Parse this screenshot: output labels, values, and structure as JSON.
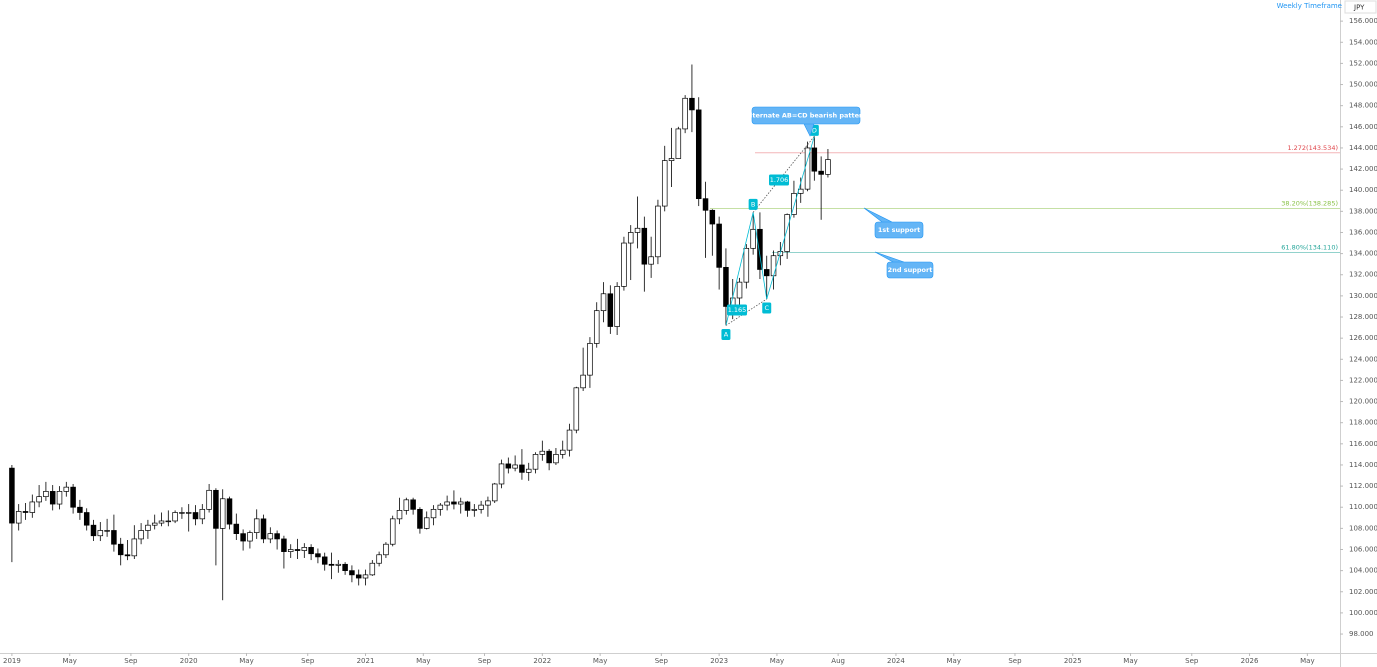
{
  "chart_data": {
    "type": "candlestick",
    "x": [
      0,
      2,
      4,
      6,
      8,
      10,
      12,
      14,
      16,
      18,
      20,
      22,
      24,
      26,
      28,
      30,
      32,
      34,
      36,
      38,
      40,
      42,
      44,
      46,
      48,
      50,
      52,
      54,
      56,
      58,
      60,
      62,
      64,
      66,
      68,
      70,
      72,
      74,
      76,
      78,
      80,
      82,
      84,
      86,
      88,
      90,
      92,
      94,
      96,
      98,
      100,
      102,
      104,
      106,
      108,
      110,
      112,
      114,
      116,
      118,
      120,
      122,
      124,
      126,
      128,
      130,
      132,
      134,
      136,
      138,
      140,
      142,
      144,
      146,
      148,
      150,
      152,
      154,
      156,
      158,
      160,
      162,
      164,
      166,
      168,
      170,
      172,
      174,
      176,
      178,
      180,
      182,
      184,
      186,
      188,
      190,
      192,
      194,
      196,
      198,
      200,
      202,
      204,
      206,
      208,
      210,
      212,
      214,
      216,
      218,
      220,
      222,
      224,
      226,
      228,
      230,
      232,
      234,
      236,
      238,
      240
    ],
    "open": [
      113.7,
      108.5,
      109.6,
      109.5,
      110.5,
      111.0,
      111.5,
      110.3,
      111.5,
      111.9,
      110.0,
      109.5,
      108.3,
      107.3,
      107.8,
      107.8,
      106.5,
      105.5,
      105.4,
      107.0,
      107.8,
      108.3,
      108.5,
      108.7,
      108.7,
      109.5,
      109.5,
      109.5,
      108.9,
      109.8,
      111.6,
      108.0,
      110.8,
      108.4,
      107.5,
      106.8,
      107.6,
      108.9,
      107.0,
      107.5,
      107.0,
      105.8,
      106.0,
      105.9,
      106.2,
      105.6,
      105.3,
      104.6,
      104.5,
      104.6,
      104.0,
      103.6,
      103.3,
      103.6,
      104.7,
      105.5,
      106.5,
      108.9,
      109.7,
      110.7,
      109.8,
      108.0,
      109.0,
      109.8,
      110.2,
      110.5,
      110.3,
      110.5,
      109.7,
      109.8,
      110.2,
      110.6,
      112.2,
      114.1,
      113.7,
      114.0,
      113.3,
      113.6,
      115.0,
      115.3,
      114.2,
      115.0,
      115.4,
      117.3,
      121.3,
      122.5,
      125.5,
      128.6,
      130.2,
      127.1,
      130.9,
      135.0,
      136.0,
      136.4,
      133.0,
      133.7,
      138.5,
      142.8,
      143.0,
      145.8,
      148.7,
      147.6,
      139.2,
      138.1,
      136.8,
      132.7,
      129.0,
      129.8,
      131.3,
      134.5,
      136.3,
      132.5,
      131.9,
      133.8,
      134.2,
      137.7,
      139.7,
      140.1,
      144.0,
      141.8,
      141.5
    ],
    "high": [
      114.0,
      110.3,
      110.4,
      111.2,
      112.1,
      112.4,
      112.1,
      112.0,
      112.4,
      112.2,
      110.7,
      109.9,
      108.8,
      108.6,
      108.9,
      109.3,
      107.1,
      106.9,
      108.3,
      108.5,
      108.8,
      109.3,
      109.5,
      109.7,
      109.7,
      110.0,
      110.3,
      110.2,
      110.3,
      112.2,
      111.8,
      111.7,
      111.0,
      109.4,
      107.9,
      107.8,
      109.8,
      109.3,
      108.1,
      107.8,
      107.3,
      106.5,
      107.0,
      106.6,
      106.5,
      106.1,
      105.7,
      105.7,
      105.0,
      104.8,
      104.5,
      104.1,
      104.1,
      105.0,
      105.8,
      106.7,
      109.2,
      110.9,
      110.9,
      110.9,
      110.0,
      109.6,
      110.2,
      110.4,
      111.1,
      111.6,
      110.9,
      110.6,
      110.3,
      110.6,
      111.0,
      112.3,
      114.5,
      114.7,
      114.9,
      115.5,
      114.2,
      115.2,
      116.3,
      115.5,
      115.6,
      116.3,
      117.9,
      121.4,
      125.1,
      126.1,
      129.4,
      131.3,
      131.0,
      131.3,
      135.6,
      136.7,
      139.4,
      137.5,
      135.6,
      139.1,
      144.2,
      145.9,
      146.0,
      149.0,
      151.9,
      148.8,
      140.8,
      138.2,
      137.5,
      134.5,
      131.6,
      131.7,
      134.9,
      137.9,
      137.9,
      133.8,
      134.3,
      135.1,
      137.8,
      140.9,
      141.2,
      144.6,
      145.1,
      143.2,
      143.9
    ],
    "low": [
      104.8,
      107.8,
      108.8,
      109.0,
      110.0,
      110.6,
      109.7,
      109.8,
      111.0,
      109.4,
      108.8,
      107.8,
      106.8,
      106.8,
      107.2,
      105.8,
      104.5,
      105.0,
      105.1,
      106.5,
      107.0,
      107.9,
      108.2,
      108.2,
      108.5,
      108.9,
      107.7,
      108.3,
      108.4,
      109.5,
      104.5,
      101.2,
      107.9,
      106.9,
      105.9,
      106.1,
      107.0,
      106.6,
      106.6,
      106.0,
      104.2,
      105.2,
      105.1,
      105.2,
      105.0,
      104.7,
      104.0,
      103.2,
      103.8,
      103.6,
      102.9,
      102.6,
      102.6,
      103.5,
      104.4,
      105.2,
      106.3,
      108.4,
      109.3,
      109.3,
      107.5,
      107.9,
      108.3,
      109.2,
      109.7,
      109.8,
      109.4,
      109.1,
      109.1,
      109.4,
      109.1,
      110.4,
      111.8,
      113.2,
      113.4,
      112.6,
      112.5,
      113.2,
      114.4,
      113.5,
      114.0,
      114.6,
      114.8,
      117.0,
      121.0,
      121.3,
      125.1,
      127.5,
      126.4,
      126.3,
      130.5,
      131.5,
      134.5,
      130.4,
      131.7,
      133.0,
      138.0,
      140.3,
      143.5,
      145.4,
      145.5,
      138.5,
      133.6,
      133.8,
      130.6,
      127.2,
      127.8,
      128.5,
      130.7,
      133.9,
      131.6,
      129.7,
      130.6,
      132.9,
      133.5,
      137.4,
      138.8,
      139.9,
      140.9,
      137.2,
      141.2
    ],
    "close": [
      108.5,
      109.6,
      109.5,
      110.5,
      111.0,
      111.5,
      110.3,
      111.5,
      111.9,
      110.0,
      109.5,
      108.3,
      107.3,
      107.8,
      107.8,
      106.5,
      105.5,
      105.4,
      107.0,
      107.8,
      108.3,
      108.5,
      108.7,
      108.7,
      109.5,
      109.5,
      109.5,
      108.9,
      109.8,
      111.6,
      108.0,
      110.8,
      108.4,
      107.5,
      106.8,
      107.6,
      108.9,
      107.0,
      107.5,
      107.0,
      105.8,
      106.0,
      105.9,
      106.2,
      105.6,
      105.3,
      104.6,
      104.5,
      104.6,
      104.0,
      103.6,
      103.3,
      103.6,
      104.7,
      105.5,
      106.5,
      108.9,
      109.7,
      110.7,
      109.8,
      108.0,
      109.0,
      109.8,
      110.2,
      110.5,
      110.3,
      110.5,
      109.7,
      109.8,
      110.2,
      110.6,
      112.2,
      114.1,
      113.7,
      114.0,
      113.3,
      113.6,
      115.0,
      115.3,
      114.2,
      115.0,
      115.4,
      117.3,
      121.3,
      122.5,
      125.5,
      128.6,
      130.2,
      127.1,
      130.9,
      135.0,
      136.0,
      136.4,
      133.0,
      133.7,
      138.5,
      142.8,
      143.0,
      145.8,
      148.7,
      147.6,
      139.2,
      138.1,
      136.8,
      132.7,
      129.0,
      129.8,
      131.3,
      134.5,
      136.3,
      132.5,
      131.9,
      133.8,
      134.2,
      137.7,
      139.7,
      140.1,
      144.0,
      141.8,
      141.5,
      142.9
    ],
    "colors": {
      "up": "#ffffff",
      "down": "#000000",
      "outline": "#000000"
    },
    "xlim": [
      -3.5,
      390.6
    ],
    "xticks": [
      {
        "value": 0,
        "label": "2019"
      },
      {
        "value": 17,
        "label": "May"
      },
      {
        "value": 35,
        "label": "Sep"
      },
      {
        "value": 52,
        "label": "2020"
      },
      {
        "value": 69,
        "label": "May"
      },
      {
        "value": 87,
        "label": "Sep"
      },
      {
        "value": 104,
        "label": "2021"
      },
      {
        "value": 121,
        "label": "May"
      },
      {
        "value": 139,
        "label": "Sep"
      },
      {
        "value": 156,
        "label": "2022"
      },
      {
        "value": 173,
        "label": "May"
      },
      {
        "value": 191,
        "label": "Sep"
      },
      {
        "value": 208,
        "label": "2023"
      },
      {
        "value": 225,
        "label": "May"
      },
      {
        "value": 243,
        "label": "Aug"
      },
      {
        "value": 260,
        "label": "2024"
      },
      {
        "value": 277,
        "label": "May"
      },
      {
        "value": 295,
        "label": "Sep"
      },
      {
        "value": 312,
        "label": "2025"
      },
      {
        "value": 329,
        "label": "May"
      },
      {
        "value": 347,
        "label": "Sep"
      },
      {
        "value": 364,
        "label": "2026"
      },
      {
        "value": 381,
        "label": "May"
      }
    ],
    "ylim": [
      96.3,
      158
    ],
    "yticks": [
      {
        "value": 98,
        "label": "98.000"
      },
      {
        "value": 100,
        "label": "100.000"
      },
      {
        "value": 102,
        "label": "102.000"
      },
      {
        "value": 104,
        "label": "104.000"
      },
      {
        "value": 106,
        "label": "106.000"
      },
      {
        "value": 108,
        "label": "108.000"
      },
      {
        "value": 110,
        "label": "110.000"
      },
      {
        "value": 112,
        "label": "112.000"
      },
      {
        "value": 114,
        "label": "114.000"
      },
      {
        "value": 116,
        "label": "116.000"
      },
      {
        "value": 118,
        "label": "118.000"
      },
      {
        "value": 120,
        "label": "120.000"
      },
      {
        "value": 122,
        "label": "122.000"
      },
      {
        "value": 124,
        "label": "124.000"
      },
      {
        "value": 126,
        "label": "126.000"
      },
      {
        "value": 128,
        "label": "128.000"
      },
      {
        "value": 130,
        "label": "130.000"
      },
      {
        "value": 132,
        "label": "132.000"
      },
      {
        "value": 134,
        "label": "134.000"
      },
      {
        "value": 136,
        "label": "136.000"
      },
      {
        "value": 138,
        "label": "138.000"
      },
      {
        "value": 140,
        "label": "140.000"
      },
      {
        "value": 142,
        "label": "142.000"
      },
      {
        "value": 144,
        "label": "144.000"
      },
      {
        "value": 146,
        "label": "146.000"
      },
      {
        "value": 148,
        "label": "148.000"
      },
      {
        "value": 150,
        "label": "150.000"
      },
      {
        "value": 152,
        "label": "152.000"
      },
      {
        "value": 154,
        "label": "154.000"
      },
      {
        "value": 156,
        "label": "156.000"
      }
    ],
    "levels": [
      {
        "label": "1.272(143.534)",
        "value": 143.534,
        "color": "#e0474c"
      },
      {
        "label": "38.20%(138.285)",
        "value": 138.285,
        "color": "#8bc34a"
      },
      {
        "label": "61.80%(134.110)",
        "value": 134.11,
        "color": "#26a69a"
      }
    ],
    "pattern": {
      "color": "#00bcd4",
      "points": [
        {
          "label": "A",
          "x": 210,
          "y": 127.2
        },
        {
          "label": "B",
          "x": 218,
          "y": 137.9
        },
        {
          "label": "C",
          "x": 222,
          "y": 129.7
        },
        {
          "label": "D",
          "x": 236,
          "y": 145.1
        }
      ],
      "ratios": [
        "1.165",
        "1.706"
      ]
    },
    "annotations": [
      "Alternate AB=CD bearish pattern",
      "1st support",
      "2nd support"
    ],
    "header": {
      "timeframe": "Weekly Timeframe",
      "symbol": "JPY"
    }
  }
}
